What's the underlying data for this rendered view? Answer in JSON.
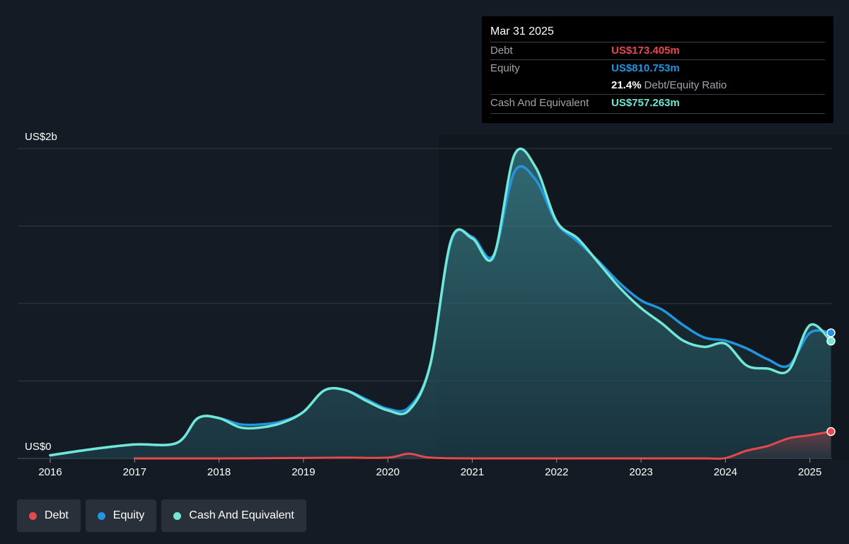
{
  "tooltip": {
    "date": "Mar 31 2025",
    "debt_label": "Debt",
    "debt_value": "US$173.405m",
    "equity_label": "Equity",
    "equity_value": "US$810.753m",
    "ratio_value": "21.4%",
    "ratio_label": "Debt/Equity Ratio",
    "cash_label": "Cash And Equivalent",
    "cash_value": "US$757.263m"
  },
  "legend": {
    "debt": "Debt",
    "equity": "Equity",
    "cash": "Cash And Equivalent"
  },
  "colors": {
    "background": "#151b24",
    "debt": "#e5484d",
    "equity": "#2394df",
    "cash": "#71e7d6",
    "grid": "#323841"
  },
  "chart_data": {
    "type": "area",
    "ylabel_top": "US$2b",
    "ylabel_bottom": "US$0",
    "ylim": [
      0,
      2000
    ],
    "xlim": [
      2016.0,
      2025.25
    ],
    "xticks": [
      "2016",
      "2017",
      "2018",
      "2019",
      "2020",
      "2021",
      "2022",
      "2023",
      "2024",
      "2025"
    ],
    "grid": true,
    "unit": "US$m",
    "series": [
      {
        "name": "Debt",
        "x": [
          2017.0,
          2018.0,
          2019.0,
          2019.5,
          2020.0,
          2020.25,
          2020.5,
          2021.0,
          2022.0,
          2023.0,
          2023.75,
          2024.0,
          2024.25,
          2024.5,
          2024.75,
          2025.0,
          2025.25
        ],
        "values": [
          0,
          0,
          3,
          5,
          5,
          30,
          5,
          0,
          0,
          0,
          0,
          2,
          50,
          80,
          130,
          150,
          173.405
        ]
      },
      {
        "name": "Equity",
        "x": [
          2016.0,
          2016.5,
          2017.0,
          2017.5,
          2017.75,
          2018.0,
          2018.25,
          2018.5,
          2018.75,
          2019.0,
          2019.25,
          2019.5,
          2019.75,
          2020.0,
          2020.25,
          2020.5,
          2020.75,
          2021.0,
          2021.25,
          2021.5,
          2021.75,
          2022.0,
          2022.25,
          2022.5,
          2022.75,
          2023.0,
          2023.25,
          2023.5,
          2023.75,
          2024.0,
          2024.25,
          2024.5,
          2024.75,
          2025.0,
          2025.25
        ],
        "values": [
          20,
          60,
          90,
          100,
          260,
          260,
          220,
          220,
          240,
          300,
          440,
          440,
          380,
          320,
          330,
          600,
          1400,
          1430,
          1310,
          1850,
          1800,
          1520,
          1400,
          1270,
          1130,
          1020,
          960,
          860,
          780,
          760,
          710,
          640,
          600,
          810,
          810.753
        ]
      },
      {
        "name": "Cash And Equivalent",
        "x": [
          2016.0,
          2016.5,
          2017.0,
          2017.5,
          2017.75,
          2018.0,
          2018.25,
          2018.5,
          2018.75,
          2019.0,
          2019.25,
          2019.5,
          2019.75,
          2020.0,
          2020.25,
          2020.5,
          2020.75,
          2021.0,
          2021.25,
          2021.5,
          2021.75,
          2022.0,
          2022.25,
          2022.5,
          2022.75,
          2023.0,
          2023.25,
          2023.5,
          2023.75,
          2024.0,
          2024.25,
          2024.5,
          2024.75,
          2025.0,
          2025.25
        ],
        "values": [
          20,
          60,
          90,
          100,
          260,
          260,
          200,
          200,
          230,
          300,
          440,
          440,
          370,
          310,
          310,
          600,
          1410,
          1420,
          1300,
          1960,
          1880,
          1530,
          1420,
          1260,
          1100,
          970,
          870,
          760,
          720,
          740,
          600,
          580,
          570,
          860,
          757.263
        ]
      }
    ]
  }
}
